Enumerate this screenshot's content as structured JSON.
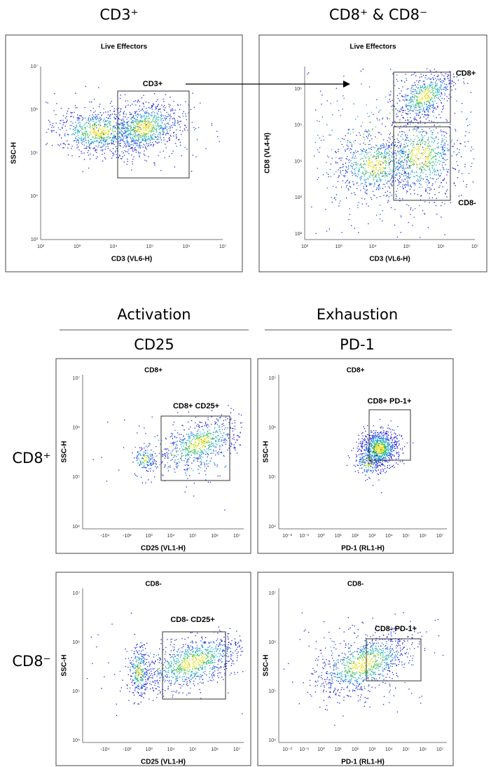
{
  "headings": {
    "top_left": "CD3⁺",
    "top_right": "CD8⁺ & CD8⁻",
    "activation": "Activation",
    "exhaustion": "Exhaustion",
    "cd25": "CD25",
    "pd1": "PD-1",
    "row_cd8pos": "CD8⁺",
    "row_cd8neg": "CD8⁻"
  },
  "panels": [
    {
      "title": "Live Effectors",
      "x_label": "CD3 (VL6-H)",
      "y_label": "SSC-H",
      "x_ticks": [
        "10²",
        "10³",
        "10⁴",
        "10⁵",
        "10⁶",
        "10⁷"
      ],
      "y_ticks": [
        "10⁷",
        "10⁶",
        "10⁵",
        "10⁴",
        "10³"
      ],
      "gates": [
        "CD3+"
      ]
    },
    {
      "title": "Live Effectors",
      "x_label": "CD3 (VL6-H)",
      "y_label": "CD8 (VL4-H)",
      "x_ticks": [
        "10²",
        "10³",
        "10⁴",
        "10⁵",
        "10⁶",
        "10⁷"
      ],
      "y_ticks": [
        "10⁶",
        "10⁵",
        "10⁴",
        "10³",
        "10²"
      ],
      "gates": [
        "CD8+",
        "CD8-"
      ]
    },
    {
      "title": "CD8+",
      "x_label": "CD25 (VL1-H)",
      "y_label": "SSC-H",
      "x_ticks": [
        "-10⁴",
        "-10²",
        "10³",
        "10⁴",
        "10⁵",
        "10⁶",
        "10⁷"
      ],
      "y_ticks": [
        "10⁷",
        "10⁶",
        "10⁵",
        "10⁴"
      ],
      "gates": [
        "CD8+  CD25+"
      ]
    },
    {
      "title": "CD8+",
      "x_label": "PD-1 (RL1-H)",
      "y_label": "SSC-H",
      "x_ticks": [
        "10⁻²",
        "10⁻¹",
        "10⁰",
        "10¹",
        "10²",
        "10³",
        "10⁴",
        "10⁵",
        "10⁶",
        "10⁷"
      ],
      "y_ticks": [
        "10⁷",
        "10⁶",
        "10⁵",
        "10⁴"
      ],
      "gates": [
        "CD8+  PD-1+"
      ]
    },
    {
      "title": "CD8-",
      "x_label": "CD25 (VL1-H)",
      "y_label": "SSC-H",
      "x_ticks": [
        "-10⁴",
        "-10²",
        "10³",
        "10⁴",
        "10⁵",
        "10⁶",
        "10⁷"
      ],
      "y_ticks": [
        "10⁷",
        "10⁶",
        "10⁵",
        "10⁴"
      ],
      "gates": [
        "CD8-  CD25+"
      ]
    },
    {
      "title": "CD8-",
      "x_label": "PD-1 (RL1-H)",
      "y_label": "SSC-H",
      "x_ticks": [
        "10⁻²",
        "10⁻¹",
        "10⁰",
        "10¹",
        "10²",
        "10³",
        "10⁴",
        "10⁵",
        "10⁶",
        "10⁷"
      ],
      "y_ticks": [
        "10⁷",
        "10⁶",
        "10⁵",
        "10⁴"
      ],
      "gates": [
        "CD8-  PD-1+"
      ]
    }
  ]
}
